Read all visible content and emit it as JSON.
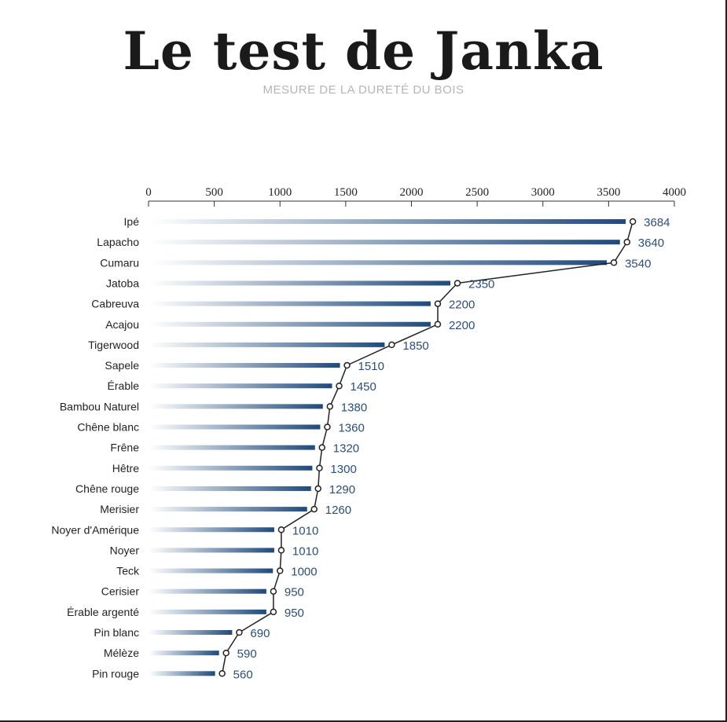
{
  "header": {
    "title": "Le test de Janka",
    "subtitle": "MESURE DE LA DURETÉ DU BOIS"
  },
  "colors": {
    "bar": "#1f4a7c",
    "bar_fade": "#ffffff",
    "line": "#222222",
    "value_text": "#2a4e7e"
  },
  "chart_data": {
    "type": "bar",
    "orientation": "horizontal",
    "title": "Le test de Janka",
    "subtitle": "MESURE DE LA DURETÉ DU BOIS",
    "xlim": [
      0,
      4000
    ],
    "x_ticks": [
      0,
      500,
      1000,
      1500,
      2000,
      2500,
      3000,
      3500,
      4000
    ],
    "x_axis_position": "top",
    "grid": false,
    "legend": "none",
    "categories": [
      "Ipé",
      "Lapacho",
      "Cumaru",
      "Jatoba",
      "Cabreuva",
      "Acajou",
      "Tigerwood",
      "Sapele",
      "Érable",
      "Bambou Naturel",
      "Chêne blanc",
      "Frêne",
      "Hêtre",
      "Chêne rouge",
      "Merisier",
      "Noyer d'Amérique",
      "Noyer",
      "Teck",
      "Cerisier",
      "Érable argenté",
      "Pin blanc",
      "Mélèze",
      "Pin rouge"
    ],
    "values": [
      3684,
      3640,
      3540,
      2350,
      2200,
      2200,
      1850,
      1510,
      1450,
      1380,
      1360,
      1320,
      1300,
      1290,
      1260,
      1010,
      1010,
      1000,
      950,
      950,
      690,
      590,
      560
    ],
    "overlay": "line connecting bar ends with circle markers"
  }
}
